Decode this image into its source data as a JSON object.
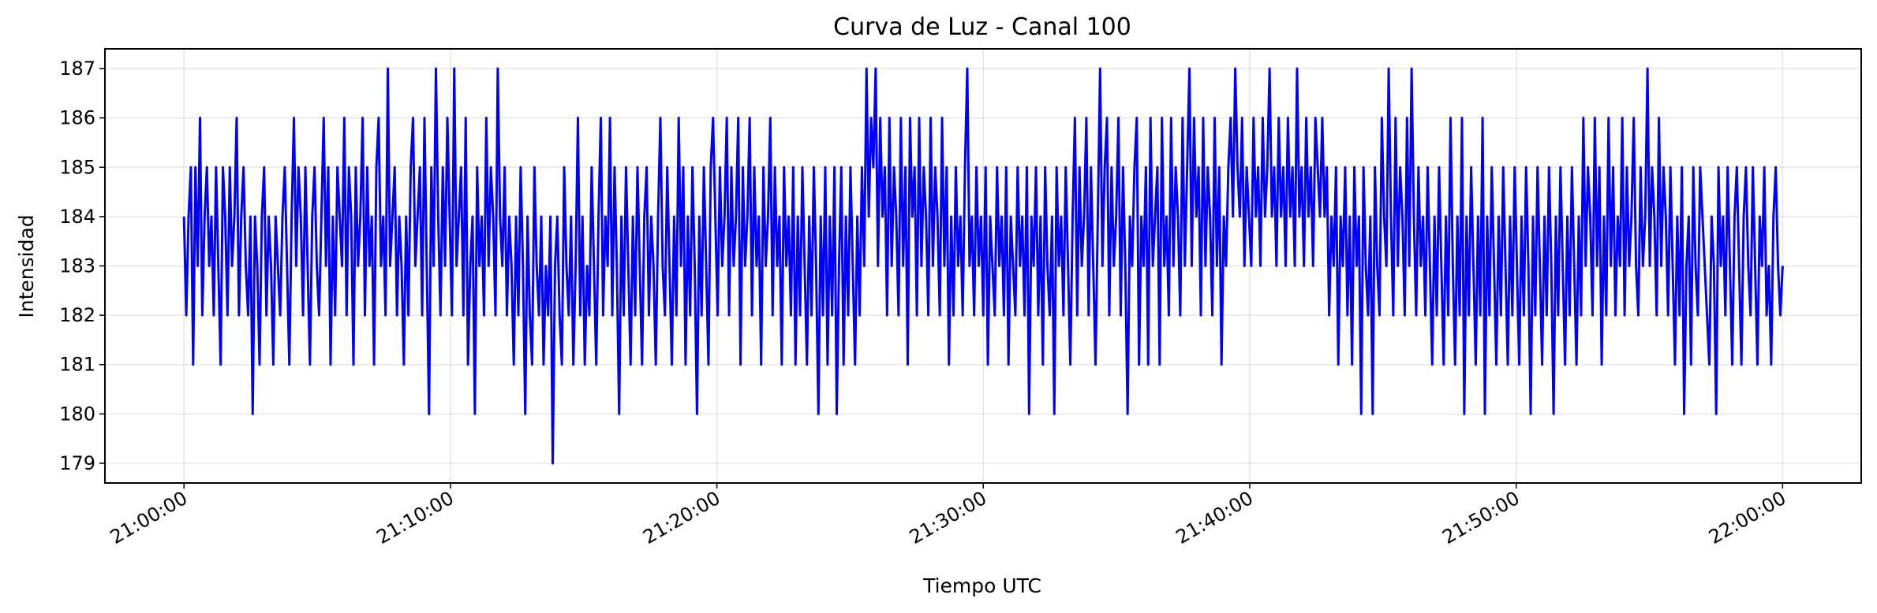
{
  "chart_data": {
    "type": "line",
    "title": "Curva de Luz - Canal 100",
    "xlabel": "Tiempo UTC",
    "ylabel": "Intensidad",
    "xlim": [
      "20:57:02",
      "22:02:57"
    ],
    "ylim": [
      178.6,
      187.4
    ],
    "grid": true,
    "line_color": "#0000ff",
    "y_ticks": [
      179,
      180,
      181,
      182,
      183,
      184,
      185,
      186,
      187
    ],
    "x_ticks": [
      "21:00:00",
      "21:10:00",
      "21:20:00",
      "21:30:00",
      "21:40:00",
      "21:50:00",
      "22:00:00"
    ],
    "series": [
      {
        "x_start": "21:00:00",
        "x_end": "22:00:00",
        "values": [
          184,
          182,
          184,
          185,
          181,
          185,
          183,
          186,
          182,
          184,
          185,
          183,
          184,
          182,
          185,
          183,
          181,
          185,
          184,
          182,
          185,
          183,
          184,
          186,
          182,
          184,
          185,
          183,
          182,
          184,
          180,
          184,
          183,
          181,
          184,
          185,
          182,
          184,
          183,
          181,
          184,
          183,
          182,
          184,
          185,
          183,
          181,
          184,
          186,
          183,
          185,
          184,
          182,
          185,
          183,
          181,
          184,
          185,
          183,
          182,
          184,
          186,
          183,
          185,
          181,
          184,
          182,
          185,
          184,
          183,
          186,
          182,
          185,
          184,
          181,
          185,
          183,
          184,
          186,
          182,
          185,
          183,
          184,
          181,
          185,
          186,
          183,
          184,
          182,
          187,
          183,
          184,
          185,
          182,
          184,
          183,
          181,
          184,
          182,
          185,
          186,
          183,
          184,
          185,
          182,
          186,
          183,
          180,
          185,
          183,
          187,
          184,
          182,
          185,
          183,
          186,
          184,
          182,
          187,
          183,
          184,
          185,
          182,
          186,
          181,
          183,
          184,
          180,
          185,
          183,
          184,
          182,
          186,
          183,
          185,
          184,
          182,
          187,
          184,
          183,
          185,
          182,
          184,
          183,
          181,
          184,
          182,
          185,
          183,
          180,
          184,
          182,
          181,
          185,
          183,
          182,
          184,
          181,
          183,
          182,
          184,
          179,
          183,
          184,
          182,
          181,
          185,
          183,
          182,
          184,
          181,
          183,
          186,
          182,
          184,
          181,
          183,
          182,
          185,
          183,
          181,
          184,
          186,
          182,
          184,
          183,
          186,
          182,
          185,
          183,
          180,
          184,
          182,
          185,
          183,
          181,
          184,
          182,
          185,
          183,
          181,
          184,
          185,
          182,
          184,
          183,
          181,
          184,
          186,
          183,
          182,
          185,
          183,
          181,
          184,
          182,
          186,
          183,
          185,
          181,
          184,
          182,
          185,
          183,
          180,
          184,
          182,
          185,
          183,
          181,
          185,
          186,
          184,
          182,
          185,
          183,
          184,
          186,
          182,
          185,
          183,
          184,
          186,
          181,
          185,
          183,
          184,
          186,
          182,
          185,
          183,
          184,
          181,
          185,
          183,
          184,
          186,
          182,
          185,
          183,
          184,
          181,
          185,
          183,
          184,
          182,
          185,
          181,
          184,
          182,
          185,
          183,
          181,
          184,
          182,
          185,
          183,
          180,
          184,
          182,
          185,
          181,
          184,
          182,
          185,
          180,
          183,
          185,
          181,
          184,
          182,
          185,
          183,
          181,
          184,
          182,
          185,
          183,
          187,
          184,
          186,
          185,
          187,
          183,
          186,
          184,
          185,
          182,
          186,
          183,
          185,
          184,
          182,
          186,
          183,
          185,
          181,
          186,
          184,
          185,
          182,
          186,
          183,
          185,
          184,
          182,
          186,
          183,
          185,
          184,
          182,
          186,
          183,
          185,
          181,
          184,
          182,
          185,
          183,
          184,
          182,
          185,
          187,
          183,
          184,
          182,
          185,
          183,
          184,
          182,
          185,
          181,
          184,
          183,
          182,
          185,
          183,
          184,
          182,
          185,
          181,
          184,
          183,
          182,
          185,
          183,
          184,
          182,
          185,
          180,
          184,
          183,
          185,
          182,
          184,
          181,
          185,
          183,
          182,
          184,
          180,
          185,
          183,
          184,
          182,
          185,
          183,
          181,
          184,
          186,
          182,
          185,
          183,
          184,
          186,
          182,
          185,
          183,
          181,
          184,
          187,
          183,
          185,
          186,
          182,
          185,
          183,
          184,
          186,
          182,
          185,
          183,
          180,
          184,
          183,
          185,
          186,
          181,
          184,
          183,
          185,
          181,
          186,
          183,
          184,
          185,
          181,
          186,
          183,
          184,
          182,
          186,
          183,
          185,
          184,
          182,
          186,
          183,
          185,
          187,
          183,
          186,
          184,
          185,
          182,
          186,
          183,
          185,
          184,
          182,
          186,
          183,
          185,
          181,
          184,
          183,
          185,
          186,
          184,
          187,
          185,
          184,
          186,
          183,
          185,
          184,
          183,
          186,
          184,
          185,
          183,
          186,
          184,
          185,
          187,
          184,
          185,
          183,
          186,
          184,
          185,
          183,
          186,
          184,
          185,
          183,
          187,
          184,
          185,
          183,
          186,
          184,
          185,
          183,
          186,
          185,
          184,
          186,
          184,
          185,
          182,
          184,
          183,
          185,
          181,
          184,
          183,
          185,
          182,
          184,
          181,
          185,
          183,
          184,
          180,
          185,
          183,
          182,
          184,
          180,
          185,
          183,
          182,
          186,
          184,
          183,
          187,
          184,
          182,
          186,
          183,
          185,
          184,
          182,
          186,
          183,
          187,
          184,
          182,
          185,
          183,
          184,
          182,
          185,
          183,
          181,
          184,
          182,
          185,
          183,
          181,
          184,
          182,
          186,
          183,
          181,
          184,
          182,
          186,
          180,
          184,
          182,
          185,
          183,
          181,
          184,
          182,
          186,
          180,
          184,
          182,
          185,
          183,
          181,
          184,
          182,
          185,
          183,
          181,
          184,
          182,
          185,
          183,
          181,
          184,
          182,
          185,
          183,
          180,
          184,
          182,
          185,
          183,
          181,
          184,
          182,
          185,
          183,
          180,
          184,
          182,
          185,
          183,
          181,
          184,
          182,
          185,
          183,
          181,
          184,
          182,
          186,
          183,
          185,
          184,
          182,
          186,
          183,
          185,
          181,
          184,
          182,
          186,
          183,
          185,
          182,
          184,
          183,
          186,
          182,
          185,
          183,
          184,
          186,
          183,
          182,
          185,
          183,
          184,
          187,
          183,
          185,
          184,
          182,
          186,
          183,
          185,
          184,
          182,
          185,
          183,
          181,
          184,
          182,
          185,
          180,
          183,
          184,
          181,
          185,
          183,
          182,
          185,
          184,
          183,
          182,
          181,
          184,
          183,
          180,
          185,
          183,
          184,
          182,
          185,
          183,
          181,
          184,
          185,
          183,
          181,
          184,
          185,
          183,
          182,
          185,
          183,
          181,
          184,
          183,
          185,
          182,
          183,
          181,
          184,
          185,
          183,
          182,
          183
        ]
      }
    ]
  }
}
